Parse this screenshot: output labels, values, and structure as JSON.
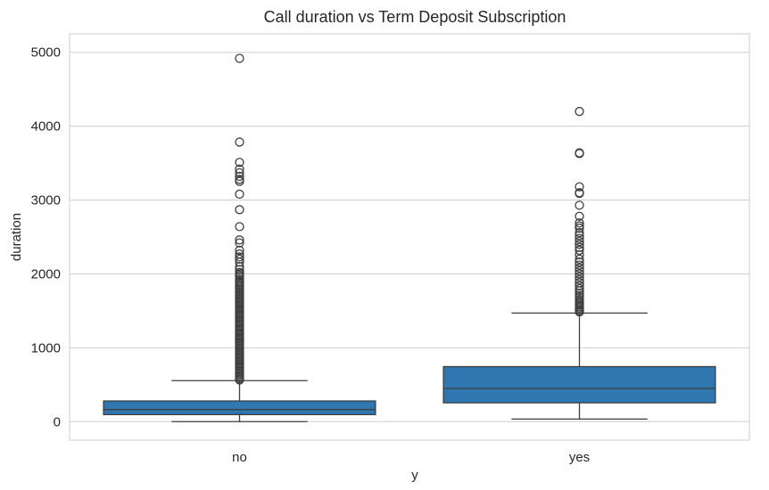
{
  "chart_data": {
    "type": "boxplot",
    "title": "Call duration vs Term Deposit Subscription",
    "xlabel": "y",
    "ylabel": "duration",
    "categories": [
      "no",
      "yes"
    ],
    "ylim": [
      -250,
      5250
    ],
    "yticks": [
      0,
      1000,
      2000,
      3000,
      4000,
      5000
    ],
    "grid": true,
    "colors": {
      "box": "#2e77b1",
      "line": "#3f3f3f",
      "grid": "#cfcfcf",
      "frame": "#cccccc"
    },
    "boxes": [
      {
        "category": "no",
        "whisker_low": 0,
        "q1": 95,
        "median": 164,
        "q3": 280,
        "whisker_high": 555,
        "outliers": [
          4918,
          3785,
          3510,
          3420,
          3370,
          3320,
          3280,
          3253,
          3080,
          2870,
          2640,
          2460,
          2420,
          2320,
          2270,
          2230,
          2200,
          2160,
          2100,
          2060,
          2020,
          2000,
          1980,
          1960,
          1930,
          1900,
          1880,
          1860,
          1840,
          1820,
          1800,
          1780,
          1760,
          1740,
          1720,
          1700,
          1680,
          1660,
          1640,
          1620,
          1600,
          1580,
          1560,
          1540,
          1520,
          1500,
          1480,
          1460,
          1440,
          1420,
          1400,
          1380,
          1360,
          1340,
          1320,
          1300,
          1280,
          1260,
          1240,
          1220,
          1200,
          1180,
          1160,
          1140,
          1120,
          1100,
          1080,
          1060,
          1040,
          1020,
          1000,
          980,
          960,
          940,
          920,
          900,
          880,
          860,
          840,
          820,
          800,
          780,
          760,
          740,
          720,
          700,
          680,
          660,
          640,
          620,
          600,
          580,
          565
        ]
      },
      {
        "category": "yes",
        "whisker_low": 35,
        "q1": 255,
        "median": 450,
        "q3": 745,
        "whisker_high": 1470,
        "outliers": [
          4200,
          3640,
          3630,
          3180,
          3100,
          3090,
          2930,
          2780,
          2690,
          2650,
          2620,
          2560,
          2520,
          2480,
          2440,
          2400,
          2360,
          2320,
          2260,
          2200,
          2160,
          2120,
          2080,
          2040,
          2000,
          1960,
          1920,
          1880,
          1840,
          1800,
          1770,
          1740,
          1710,
          1680,
          1650,
          1620,
          1600,
          1580,
          1560,
          1540,
          1520,
          1500,
          1485
        ]
      }
    ]
  }
}
